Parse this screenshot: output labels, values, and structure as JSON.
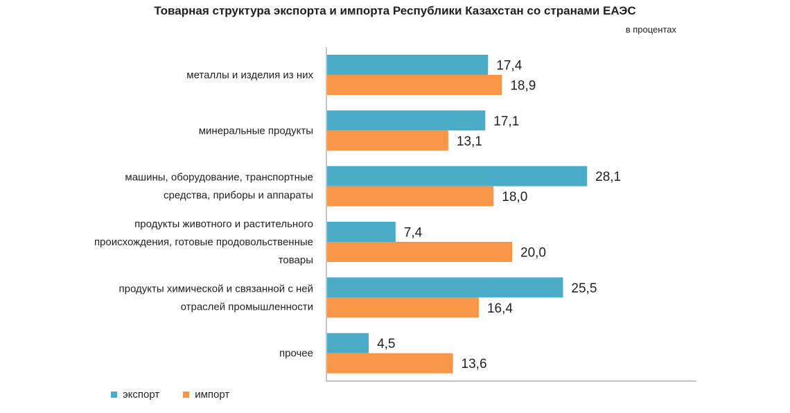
{
  "title": "Товарная структура экспорта и импорта Республики Казахстан со странами ЕАЭС",
  "unit_note": "в процентах",
  "colors": {
    "export": "#4aacc6",
    "import": "#f79646",
    "axis": "#8a8a8a"
  },
  "chart_data": {
    "type": "bar",
    "orientation": "horizontal",
    "title": "Товарная структура экспорта и импорта Республики Казахстан со странами ЕАЭС",
    "subtitle": "в процентах",
    "categories": [
      [
        "металлы и изделия  из них"
      ],
      [
        "минеральные продукты"
      ],
      [
        "машины, оборудование, транспортные",
        "средства, приборы и аппараты"
      ],
      [
        "продукты животного и растительного",
        "происхождения, готовые продовольственные",
        "товары"
      ],
      [
        "продукты химической и связанной с ней",
        "отраслей промышленности"
      ],
      [
        "прочее"
      ]
    ],
    "series": [
      {
        "name": "экспорт",
        "values": [
          17.4,
          17.1,
          28.1,
          7.4,
          25.5,
          4.5
        ],
        "labels": [
          "17,4",
          "17,1",
          "28,1",
          "7,4",
          "25,5",
          "4,5"
        ]
      },
      {
        "name": "импорт",
        "values": [
          18.9,
          13.1,
          18.0,
          20.0,
          16.4,
          13.6
        ],
        "labels": [
          "18,9",
          "13,1",
          "18,0",
          "20,0",
          "16,4",
          "13,6"
        ]
      }
    ],
    "xlim": [
      0,
      40
    ],
    "grid": false,
    "legend_position": "bottom-left"
  }
}
